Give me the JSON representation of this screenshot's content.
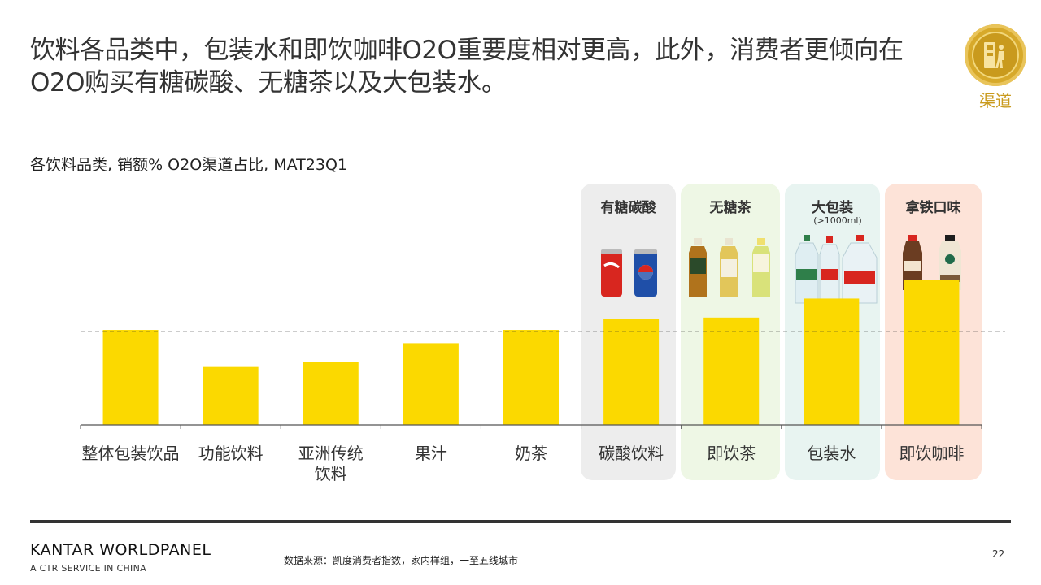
{
  "headline": "饮料各品类中，包装水和即饮咖啡O2O重要度相对更高，此外，消费者更倾向在O2O购买有糖碳酸、无糖茶以及大包装水。",
  "badge": {
    "label": "渠道",
    "icon": "channel-store-icon"
  },
  "subtitle": "各饮料品类, 销额% O2O渠道占比, MAT23Q1",
  "highlight_panels": [
    {
      "title": "有糖碳酸",
      "note": "",
      "category": "碳酸饮料",
      "color": "#ededed"
    },
    {
      "title": "无糖茶",
      "note": "",
      "category": "即饮茶",
      "color": "#eef7e5"
    },
    {
      "title": "大包装",
      "note": "(>1000ml)",
      "category": "包装水",
      "color": "#e8f4f1"
    },
    {
      "title": "拿铁口味",
      "note": "",
      "category": "即饮咖啡",
      "color": "#fde3d8"
    }
  ],
  "chart_data": {
    "type": "bar",
    "title": "",
    "xlabel": "",
    "ylabel": "",
    "categories": [
      "整体包装饮品",
      "功能饮料",
      "亚洲传统饮料",
      "果汁",
      "奶茶",
      "碳酸饮料",
      "即饮茶",
      "包装水",
      "即饮咖啡"
    ],
    "category_lines": [
      [
        "整体包装饮品"
      ],
      [
        "功能饮料"
      ],
      [
        "亚洲传统",
        "饮料"
      ],
      [
        "果汁"
      ],
      [
        "奶茶"
      ],
      [
        "碳酸饮料"
      ],
      [
        "即饮茶"
      ],
      [
        "包装水"
      ],
      [
        "即饮咖啡"
      ]
    ],
    "values": [
      100,
      61,
      66,
      86,
      100,
      112,
      113,
      133,
      153
    ],
    "reference_line": {
      "value": 98,
      "style": "dashed",
      "label": ""
    },
    "ylim": [
      0,
      165
    ],
    "bar_color": "#fbd900",
    "grid": false,
    "legend": "none"
  },
  "footer": {
    "brand": "KANTAR WORLDPANEL",
    "brand_sub": "A CTR SERVICE IN CHINA",
    "source": "数据来源：凯度消费者指数，家内样组，一至五线城市",
    "page": "22"
  }
}
